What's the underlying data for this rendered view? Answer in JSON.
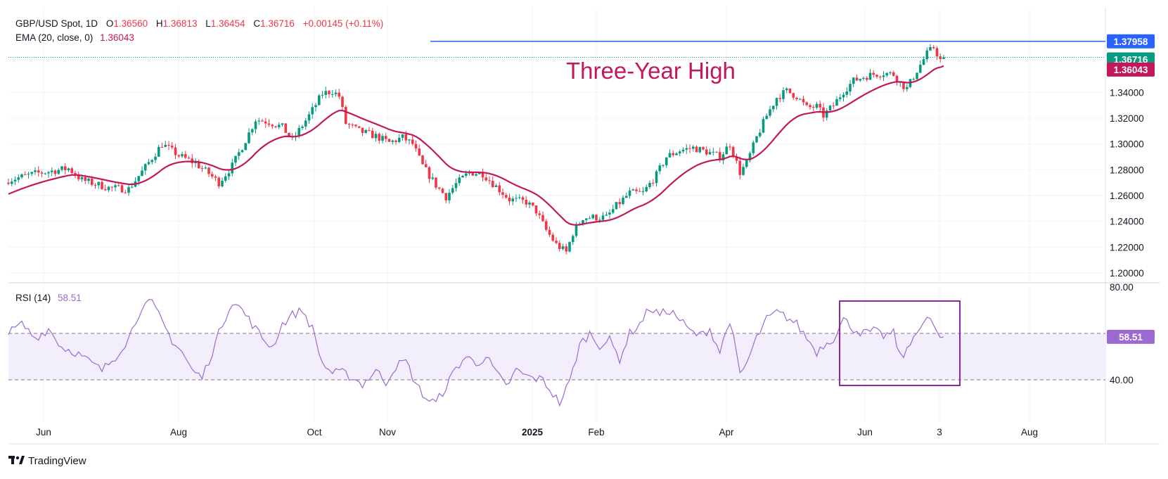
{
  "header": {
    "symbol": "GBP/USD Spot, 1D",
    "o_label": "O",
    "o_value": "1.36560",
    "h_label": "H",
    "h_value": "1.36813",
    "l_label": "L",
    "l_value": "1.36454",
    "c_label": "C",
    "c_value": "1.36716",
    "change": "+0.00145 (+0.11%)",
    "ema_label": "EMA (20, close, 0)",
    "ema_value": "1.36043"
  },
  "annotation": "Three-Year High",
  "branding": "TradingView",
  "colors": {
    "up": "#089981",
    "down": "#f23645",
    "ema": "#c2185b",
    "annotation": "#c2185b",
    "resistance": "#2962ff",
    "rsi_line": "#9c6ad0",
    "rsi_band": "#f3eefb",
    "rsi_box": "#8e24aa",
    "close_tag": "#089981",
    "ema_tag": "#c2185b",
    "resistance_tag": "#2962ff"
  },
  "chart_data": [
    {
      "type": "candlestick",
      "title": "GBP/USD Spot, 1D",
      "ylim": [
        1.19,
        1.385
      ],
      "y_ticks": [
        "1.20000",
        "1.22000",
        "1.24000",
        "1.26000",
        "1.28000",
        "1.30000",
        "1.32000",
        "1.34000"
      ],
      "x_ticks": [
        "Jun",
        "Aug",
        "Oct",
        "Nov",
        "2025",
        "Feb",
        "Apr",
        "Jun",
        "3",
        "Aug"
      ],
      "price_tags": {
        "resistance": "1.37958",
        "close": "1.36716",
        "ema": "1.36043"
      },
      "resistance_level": 1.37958,
      "last_close": 1.36716,
      "anchors": [
        [
          0,
          1.272
        ],
        [
          8,
          1.277
        ],
        [
          18,
          1.281
        ],
        [
          22,
          1.272
        ],
        [
          30,
          1.266
        ],
        [
          36,
          1.265
        ],
        [
          41,
          1.282
        ],
        [
          46,
          1.3
        ],
        [
          51,
          1.291
        ],
        [
          56,
          1.285
        ],
        [
          60,
          1.277
        ],
        [
          63,
          1.27
        ],
        [
          67,
          1.283
        ],
        [
          71,
          1.303
        ],
        [
          74,
          1.319
        ],
        [
          78,
          1.317
        ],
        [
          82,
          1.313
        ],
        [
          85,
          1.303
        ],
        [
          90,
          1.322
        ],
        [
          94,
          1.339
        ],
        [
          97,
          1.341
        ],
        [
          99,
          1.337
        ],
        [
          101,
          1.316
        ],
        [
          105,
          1.31
        ],
        [
          110,
          1.306
        ],
        [
          114,
          1.301
        ],
        [
          118,
          1.305
        ],
        [
          121,
          1.3
        ],
        [
          124,
          1.283
        ],
        [
          128,
          1.268
        ],
        [
          131,
          1.259
        ],
        [
          134,
          1.269
        ],
        [
          138,
          1.278
        ],
        [
          142,
          1.277
        ],
        [
          146,
          1.267
        ],
        [
          150,
          1.257
        ],
        [
          155,
          1.255
        ],
        [
          158,
          1.248
        ],
        [
          161,
          1.233
        ],
        [
          164,
          1.222
        ],
        [
          167,
          1.216
        ],
        [
          169,
          1.231
        ],
        [
          172,
          1.243
        ],
        [
          176,
          1.243
        ],
        [
          179,
          1.243
        ],
        [
          182,
          1.252
        ],
        [
          186,
          1.262
        ],
        [
          190,
          1.262
        ],
        [
          194,
          1.276
        ],
        [
          197,
          1.29
        ],
        [
          201,
          1.295
        ],
        [
          205,
          1.297
        ],
        [
          209,
          1.294
        ],
        [
          213,
          1.29
        ],
        [
          216,
          1.3
        ],
        [
          219,
          1.278
        ],
        [
          221,
          1.285
        ],
        [
          224,
          1.305
        ],
        [
          227,
          1.322
        ],
        [
          230,
          1.336
        ],
        [
          233,
          1.341
        ],
        [
          236,
          1.337
        ],
        [
          239,
          1.328
        ],
        [
          242,
          1.329
        ],
        [
          244,
          1.322
        ],
        [
          247,
          1.33
        ],
        [
          250,
          1.341
        ],
        [
          253,
          1.349
        ],
        [
          256,
          1.352
        ],
        [
          259,
          1.354
        ],
        [
          262,
          1.355
        ],
        [
          265,
          1.354
        ],
        [
          267,
          1.347
        ],
        [
          269,
          1.343
        ],
        [
          272,
          1.357
        ],
        [
          275,
          1.37
        ],
        [
          277,
          1.375
        ],
        [
          279,
          1.365
        ],
        [
          280,
          1.36716
        ]
      ],
      "ema": {
        "label": "EMA (20, close, 0)",
        "last": 1.36043,
        "period": 20
      }
    },
    {
      "type": "line",
      "title": "RSI (14)",
      "last": 58.51,
      "last_label": "58.51",
      "ylim": [
        24,
        82
      ],
      "levels": [
        {
          "value": 40,
          "label": "40.00"
        },
        {
          "value": 60,
          "label": ""
        },
        {
          "value": 80,
          "label": "80.00"
        }
      ],
      "band": [
        40,
        60
      ],
      "anchors": [
        [
          0,
          60
        ],
        [
          4,
          64
        ],
        [
          8,
          58
        ],
        [
          12,
          62
        ],
        [
          16,
          54
        ],
        [
          20,
          52
        ],
        [
          24,
          48
        ],
        [
          28,
          44
        ],
        [
          32,
          50
        ],
        [
          36,
          58
        ],
        [
          40,
          72
        ],
        [
          43,
          73
        ],
        [
          46,
          65
        ],
        [
          49,
          57
        ],
        [
          52,
          52
        ],
        [
          55,
          44
        ],
        [
          58,
          41
        ],
        [
          61,
          52
        ],
        [
          64,
          64
        ],
        [
          67,
          74
        ],
        [
          70,
          70
        ],
        [
          73,
          64
        ],
        [
          76,
          58
        ],
        [
          79,
          54
        ],
        [
          82,
          64
        ],
        [
          85,
          68
        ],
        [
          88,
          70
        ],
        [
          91,
          62
        ],
        [
          94,
          47
        ],
        [
          97,
          43
        ],
        [
          100,
          43
        ],
        [
          103,
          41
        ],
        [
          106,
          38
        ],
        [
          110,
          44
        ],
        [
          113,
          39
        ],
        [
          116,
          46
        ],
        [
          119,
          48
        ],
        [
          122,
          38
        ],
        [
          125,
          32
        ],
        [
          128,
          30
        ],
        [
          131,
          37
        ],
        [
          134,
          45
        ],
        [
          137,
          50
        ],
        [
          140,
          47
        ],
        [
          143,
          50
        ],
        [
          146,
          43
        ],
        [
          149,
          37
        ],
        [
          152,
          44
        ],
        [
          156,
          41
        ],
        [
          160,
          40
        ],
        [
          163,
          34
        ],
        [
          165,
          30
        ],
        [
          168,
          39
        ],
        [
          171,
          55
        ],
        [
          174,
          60
        ],
        [
          177,
          55
        ],
        [
          180,
          57
        ],
        [
          183,
          49
        ],
        [
          186,
          60
        ],
        [
          189,
          64
        ],
        [
          192,
          71
        ],
        [
          195,
          68
        ],
        [
          198,
          70
        ],
        [
          201,
          66
        ],
        [
          204,
          61
        ],
        [
          207,
          59
        ],
        [
          210,
          62
        ],
        [
          213,
          52
        ],
        [
          216,
          66
        ],
        [
          219,
          42
        ],
        [
          221,
          47
        ],
        [
          224,
          58
        ],
        [
          227,
          66
        ],
        [
          230,
          69
        ],
        [
          233,
          67
        ],
        [
          236,
          64
        ],
        [
          239,
          58
        ],
        [
          242,
          52
        ],
        [
          244,
          55
        ],
        [
          247,
          58
        ],
        [
          250,
          66
        ],
        [
          253,
          62
        ],
        [
          256,
          60
        ],
        [
          259,
          61
        ],
        [
          262,
          59
        ],
        [
          265,
          60
        ],
        [
          267,
          50
        ],
        [
          269,
          52
        ],
        [
          272,
          62
        ],
        [
          275,
          66
        ],
        [
          277,
          64
        ],
        [
          279,
          57
        ],
        [
          280,
          58.51
        ]
      ]
    }
  ]
}
